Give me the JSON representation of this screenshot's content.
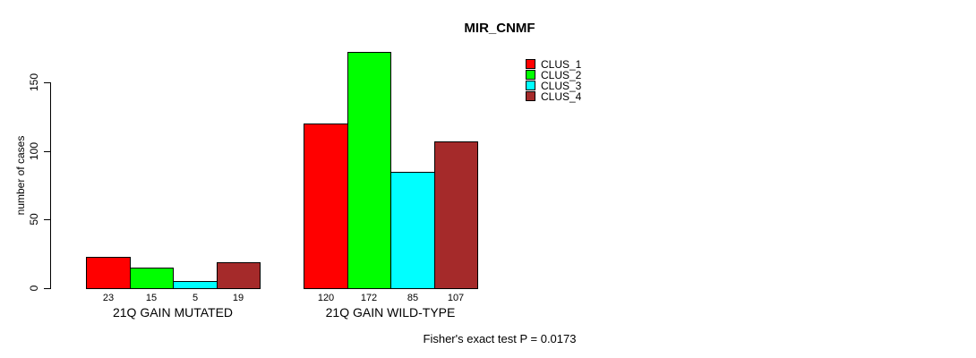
{
  "chart_data": {
    "type": "bar",
    "title": "MIR_CNMF",
    "ylabel": "number of cases",
    "yticks": [
      0,
      50,
      100,
      150
    ],
    "ylim": [
      0,
      175
    ],
    "grid": false,
    "legend_position": "top-right",
    "categories": [
      "21Q GAIN MUTATED",
      "21Q GAIN WILD-TYPE"
    ],
    "series": [
      {
        "name": "CLUS_1",
        "color": "#ff0000",
        "values": [
          23,
          120
        ]
      },
      {
        "name": "CLUS_2",
        "color": "#00ff00",
        "values": [
          15,
          172
        ]
      },
      {
        "name": "CLUS_3",
        "color": "#00ffff",
        "values": [
          5,
          85
        ]
      },
      {
        "name": "CLUS_4",
        "color": "#a52a2a",
        "values": [
          19,
          107
        ]
      }
    ],
    "bar_value_labels": true,
    "footer": "Fisher's exact test P = 0.0173",
    "text_color": "#000000",
    "background_color": "#ffffff"
  }
}
